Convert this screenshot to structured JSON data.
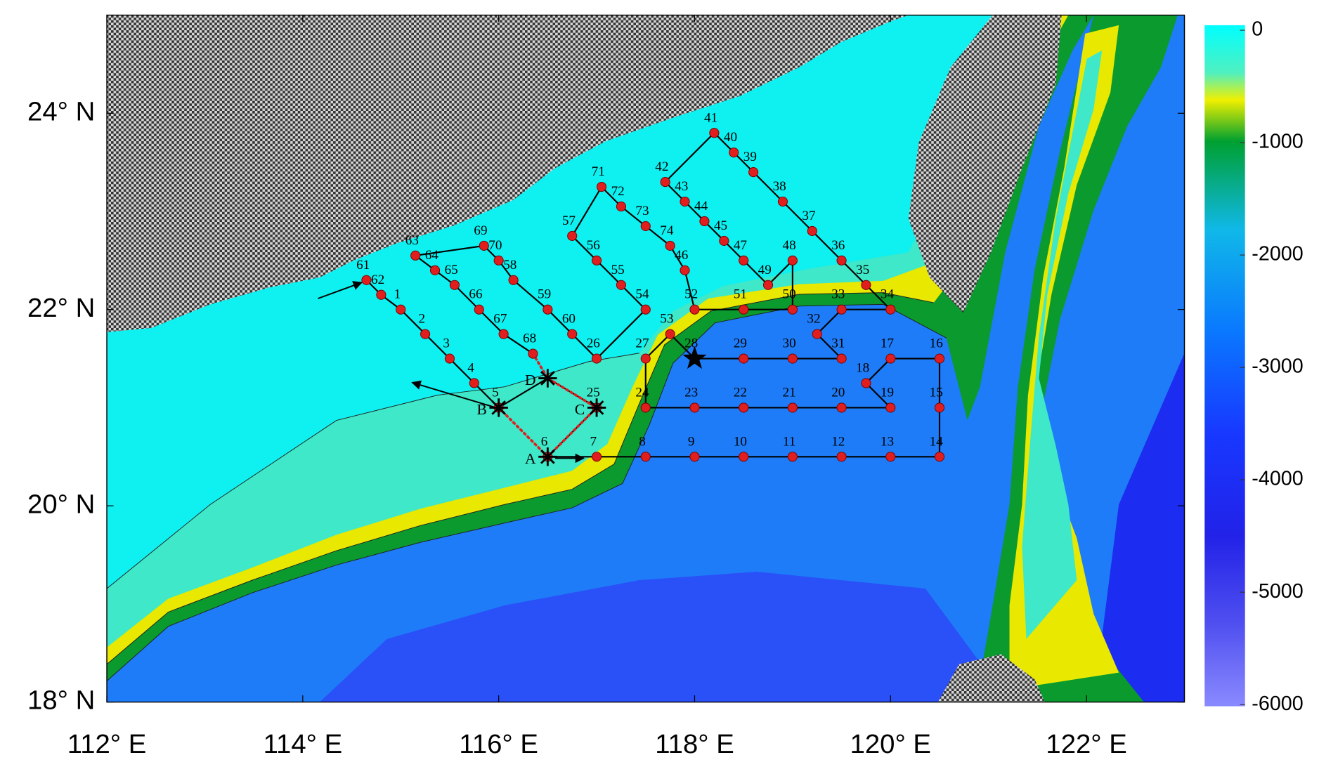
{
  "chart_data": {
    "type": "map",
    "xlim": [
      112,
      123
    ],
    "ylim": [
      18,
      25
    ],
    "xticks": [
      {
        "value": 112,
        "label": "112° E"
      },
      {
        "value": 114,
        "label": "114° E"
      },
      {
        "value": 116,
        "label": "116° E"
      },
      {
        "value": 118,
        "label": "118° E"
      },
      {
        "value": 120,
        "label": "120° E"
      },
      {
        "value": 122,
        "label": "122° E"
      }
    ],
    "yticks": [
      {
        "value": 18,
        "label": "18° N"
      },
      {
        "value": 20,
        "label": "20° N"
      },
      {
        "value": 22,
        "label": "22° N"
      },
      {
        "value": 24,
        "label": "24° N"
      }
    ],
    "colorbar": {
      "lim": [
        -6000,
        0
      ],
      "ticks": [
        0,
        -1000,
        -2000,
        -3000,
        -4000,
        -5000,
        -6000
      ]
    },
    "station_color": "#e01e1e",
    "stations": [
      {
        "label": "1",
        "lon": 115.0,
        "lat": 22.0
      },
      {
        "label": "2",
        "lon": 115.25,
        "lat": 21.75
      },
      {
        "label": "3",
        "lon": 115.5,
        "lat": 21.5
      },
      {
        "label": "4",
        "lon": 115.75,
        "lat": 21.25
      },
      {
        "label": "5",
        "lon": 116.0,
        "lat": 21.0
      },
      {
        "label": "6",
        "lon": 116.5,
        "lat": 20.5
      },
      {
        "label": "7",
        "lon": 117.0,
        "lat": 20.5
      },
      {
        "label": "8",
        "lon": 117.5,
        "lat": 20.5
      },
      {
        "label": "9",
        "lon": 118.0,
        "lat": 20.5
      },
      {
        "label": "10",
        "lon": 118.5,
        "lat": 20.5
      },
      {
        "label": "11",
        "lon": 119.0,
        "lat": 20.5
      },
      {
        "label": "12",
        "lon": 119.5,
        "lat": 20.5
      },
      {
        "label": "13",
        "lon": 120.0,
        "lat": 20.5
      },
      {
        "label": "14",
        "lon": 120.5,
        "lat": 20.5
      },
      {
        "label": "15",
        "lon": 120.5,
        "lat": 21.0
      },
      {
        "label": "16",
        "lon": 120.5,
        "lat": 21.5
      },
      {
        "label": "17",
        "lon": 120.0,
        "lat": 21.5
      },
      {
        "label": "18",
        "lon": 119.75,
        "lat": 21.25
      },
      {
        "label": "19",
        "lon": 120.0,
        "lat": 21.0
      },
      {
        "label": "20",
        "lon": 119.5,
        "lat": 21.0
      },
      {
        "label": "21",
        "lon": 119.0,
        "lat": 21.0
      },
      {
        "label": "22",
        "lon": 118.5,
        "lat": 21.0
      },
      {
        "label": "23",
        "lon": 118.0,
        "lat": 21.0
      },
      {
        "label": "24",
        "lon": 117.5,
        "lat": 21.0
      },
      {
        "label": "25",
        "lon": 117.0,
        "lat": 21.0
      },
      {
        "label": "26",
        "lon": 117.0,
        "lat": 21.5
      },
      {
        "label": "27",
        "lon": 117.5,
        "lat": 21.5
      },
      {
        "label": "28",
        "lon": 118.0,
        "lat": 21.5,
        "marker": "star"
      },
      {
        "label": "29",
        "lon": 118.5,
        "lat": 21.5
      },
      {
        "label": "30",
        "lon": 119.0,
        "lat": 21.5
      },
      {
        "label": "31",
        "lon": 119.5,
        "lat": 21.5
      },
      {
        "label": "32",
        "lon": 119.25,
        "lat": 21.75
      },
      {
        "label": "33",
        "lon": 119.5,
        "lat": 22.0
      },
      {
        "label": "34",
        "lon": 120.0,
        "lat": 22.0
      },
      {
        "label": "35",
        "lon": 119.75,
        "lat": 22.25
      },
      {
        "label": "36",
        "lon": 119.5,
        "lat": 22.5
      },
      {
        "label": "37",
        "lon": 119.2,
        "lat": 22.8
      },
      {
        "label": "38",
        "lon": 118.9,
        "lat": 23.1
      },
      {
        "label": "39",
        "lon": 118.6,
        "lat": 23.4
      },
      {
        "label": "40",
        "lon": 118.4,
        "lat": 23.6
      },
      {
        "label": "41",
        "lon": 118.2,
        "lat": 23.8
      },
      {
        "label": "42",
        "lon": 117.7,
        "lat": 23.3
      },
      {
        "label": "43",
        "lon": 117.9,
        "lat": 23.1
      },
      {
        "label": "44",
        "lon": 118.1,
        "lat": 22.9
      },
      {
        "label": "45",
        "lon": 118.3,
        "lat": 22.7
      },
      {
        "label": "46",
        "lon": 117.9,
        "lat": 22.4
      },
      {
        "label": "47",
        "lon": 118.5,
        "lat": 22.5
      },
      {
        "label": "48",
        "lon": 119.0,
        "lat": 22.5
      },
      {
        "label": "49",
        "lon": 118.75,
        "lat": 22.25
      },
      {
        "label": "50",
        "lon": 119.0,
        "lat": 22.0
      },
      {
        "label": "51",
        "lon": 118.5,
        "lat": 22.0
      },
      {
        "label": "52",
        "lon": 118.0,
        "lat": 22.0
      },
      {
        "label": "53",
        "lon": 117.75,
        "lat": 21.75
      },
      {
        "label": "54",
        "lon": 117.5,
        "lat": 22.0
      },
      {
        "label": "55",
        "lon": 117.25,
        "lat": 22.25
      },
      {
        "label": "56",
        "lon": 117.0,
        "lat": 22.5
      },
      {
        "label": "57",
        "lon": 116.75,
        "lat": 22.75
      },
      {
        "label": "58",
        "lon": 116.15,
        "lat": 22.3
      },
      {
        "label": "59",
        "lon": 116.5,
        "lat": 22.0
      },
      {
        "label": "60",
        "lon": 116.75,
        "lat": 21.75
      },
      {
        "label": "61",
        "lon": 114.65,
        "lat": 22.3
      },
      {
        "label": "62",
        "lon": 114.8,
        "lat": 22.15
      },
      {
        "label": "63",
        "lon": 115.15,
        "lat": 22.55
      },
      {
        "label": "64",
        "lon": 115.35,
        "lat": 22.4
      },
      {
        "label": "65",
        "lon": 115.55,
        "lat": 22.25
      },
      {
        "label": "66",
        "lon": 115.8,
        "lat": 22.0
      },
      {
        "label": "67",
        "lon": 116.05,
        "lat": 21.75
      },
      {
        "label": "68",
        "lon": 116.35,
        "lat": 21.55
      },
      {
        "label": "69",
        "lon": 115.85,
        "lat": 22.65
      },
      {
        "label": "70",
        "lon": 116.0,
        "lat": 22.5
      },
      {
        "label": "71",
        "lon": 117.05,
        "lat": 23.25
      },
      {
        "label": "72",
        "lon": 117.25,
        "lat": 23.05
      },
      {
        "label": "73",
        "lon": 117.5,
        "lat": 22.85
      },
      {
        "label": "74",
        "lon": 117.75,
        "lat": 22.65
      }
    ],
    "sites": [
      {
        "label": "A",
        "lon": 116.5,
        "lat": 20.5
      },
      {
        "label": "B",
        "lon": 116.0,
        "lat": 21.0
      },
      {
        "label": "C",
        "lon": 117.0,
        "lat": 21.0
      },
      {
        "label": "D",
        "lon": 116.5,
        "lat": 21.3
      }
    ],
    "track": [
      "61",
      "62",
      "1",
      "2",
      "3",
      "4",
      "5",
      "D",
      "25",
      "6",
      "7",
      "8",
      "9",
      "10",
      "11",
      "12",
      "13",
      "14",
      "15",
      "16",
      "17",
      "18",
      "19",
      "20",
      "21",
      "22",
      "23",
      "24",
      "27",
      "53",
      "28",
      "29",
      "30",
      "31",
      "32",
      "33",
      "34",
      "35",
      "36",
      "37",
      "38",
      "39",
      "40",
      "41",
      "42",
      "43",
      "44",
      "45",
      "47",
      "49",
      "48",
      "50",
      "51",
      "52",
      "46",
      "74",
      "73",
      "72",
      "71",
      "57",
      "56",
      "55",
      "54",
      "26",
      "60",
      "59",
      "58",
      "70",
      "69",
      "63",
      "64",
      "65",
      "66",
      "67",
      "68"
    ],
    "route": [
      "68",
      "D",
      "C",
      "A",
      "B"
    ]
  }
}
